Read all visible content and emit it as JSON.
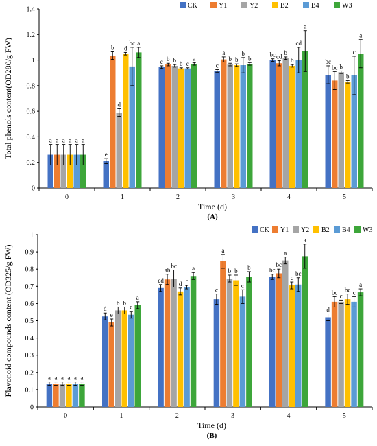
{
  "chart_data": [
    {
      "type": "bar",
      "panel_label": "(A)",
      "ylabel": "Total phenols content(OD280/g FW)",
      "xlabel": "Time (d)",
      "categories": [
        "0",
        "1",
        "2",
        "3",
        "4",
        "5"
      ],
      "ylim": [
        0,
        1.4
      ],
      "yticks": [
        "0",
        "0.2",
        "0.4",
        "0.6",
        "0.8",
        "1",
        "1.2",
        "1.4"
      ],
      "legend_position": "top-right",
      "series": [
        {
          "name": "CK",
          "color": "#4472C4",
          "values": [
            0.26,
            0.21,
            0.945,
            0.915,
            1.0,
            0.885
          ],
          "errors": [
            0.08,
            0.02,
            0.01,
            0.01,
            0.01,
            0.07
          ],
          "letters": [
            "a",
            "e",
            "c",
            "c",
            "bc",
            "bc"
          ]
        },
        {
          "name": "Y1",
          "color": "#ED7D31",
          "values": [
            0.26,
            1.035,
            0.965,
            1.005,
            0.975,
            0.84
          ],
          "errors": [
            0.08,
            0.03,
            0.01,
            0.02,
            0.02,
            0.07
          ],
          "letters": [
            "a",
            "b",
            "b",
            "a",
            "cd",
            "bc"
          ]
        },
        {
          "name": "Y2",
          "color": "#A5A5A5",
          "values": [
            0.26,
            0.59,
            0.955,
            0.965,
            1.015,
            0.905
          ],
          "errors": [
            0.08,
            0.03,
            0.01,
            0.01,
            0.01,
            0.01
          ],
          "letters": [
            "a",
            "d",
            "b",
            "b",
            "b",
            "b"
          ]
        },
        {
          "name": "B2",
          "color": "#FFC000",
          "values": [
            0.26,
            1.05,
            0.935,
            0.96,
            0.955,
            0.83
          ],
          "errors": [
            0.08,
            0.01,
            0.005,
            0.01,
            0.01,
            0.01
          ],
          "letters": [
            "a",
            "d",
            "b",
            "b",
            "b",
            "b"
          ]
        },
        {
          "name": "B4",
          "color": "#5B9BD5",
          "values": [
            0.26,
            0.95,
            0.935,
            0.96,
            1.0,
            0.88
          ],
          "errors": [
            0.08,
            0.15,
            0.005,
            0.06,
            0.1,
            0.15
          ],
          "letters": [
            "a",
            "bc",
            "c",
            "b",
            "cd",
            "c"
          ]
        },
        {
          "name": "W3",
          "color": "#3DA63A",
          "values": [
            0.26,
            1.06,
            0.97,
            0.97,
            1.07,
            1.05
          ],
          "errors": [
            0.08,
            0.04,
            0.01,
            0.01,
            0.16,
            0.11
          ],
          "letters": [
            "a",
            "a",
            "a",
            "b",
            "a",
            "a"
          ]
        }
      ]
    },
    {
      "type": "bar",
      "panel_label": "(B)",
      "ylabel": "Flavonoid compounds content (OD325/g FW)",
      "xlabel": "Time (d)",
      "categories": [
        "0",
        "1",
        "2",
        "3",
        "4",
        "5"
      ],
      "ylim": [
        0,
        1
      ],
      "yticks": [
        "0",
        "0.1",
        "0.2",
        "0.3",
        "0.4",
        "0.5",
        "0.6",
        "0.7",
        "0.8",
        "0.9",
        "1"
      ],
      "legend_position": "top-right",
      "series": [
        {
          "name": "CK",
          "color": "#4472C4",
          "values": [
            0.135,
            0.525,
            0.69,
            0.625,
            0.755,
            0.52
          ],
          "errors": [
            0.01,
            0.02,
            0.02,
            0.03,
            0.015,
            0.02
          ],
          "letters": [
            "a",
            "d",
            "cd",
            "c",
            "bc",
            "d"
          ]
        },
        {
          "name": "Y1",
          "color": "#ED7D31",
          "values": [
            0.135,
            0.49,
            0.74,
            0.845,
            0.775,
            0.61
          ],
          "errors": [
            0.01,
            0.02,
            0.03,
            0.04,
            0.025,
            0.03
          ],
          "letters": [
            "a",
            "e",
            "ab",
            "a",
            "bc",
            "bc"
          ]
        },
        {
          "name": "Y2",
          "color": "#A5A5A5",
          "values": [
            0.135,
            0.56,
            0.745,
            0.745,
            0.85,
            0.61
          ],
          "errors": [
            0.01,
            0.02,
            0.05,
            0.02,
            0.02,
            0.01
          ],
          "letters": [
            "a",
            "b",
            "bc",
            "b",
            "a",
            "c"
          ]
        },
        {
          "name": "B2",
          "color": "#FFC000",
          "values": [
            0.135,
            0.56,
            0.67,
            0.735,
            0.705,
            0.625
          ],
          "errors": [
            0.01,
            0.02,
            0.02,
            0.03,
            0.02,
            0.03
          ],
          "letters": [
            "a",
            "b",
            "d",
            "b",
            "c",
            "bc"
          ]
        },
        {
          "name": "B4",
          "color": "#5B9BD5",
          "values": [
            0.135,
            0.535,
            0.695,
            0.64,
            0.71,
            0.61
          ],
          "errors": [
            0.01,
            0.02,
            0.01,
            0.04,
            0.04,
            0.03
          ],
          "letters": [
            "a",
            "c",
            "c",
            "c",
            "bc",
            "c"
          ]
        },
        {
          "name": "W3",
          "color": "#3DA63A",
          "values": [
            0.135,
            0.59,
            0.76,
            0.755,
            0.875,
            0.665
          ],
          "errors": [
            0.01,
            0.02,
            0.02,
            0.03,
            0.07,
            0.02
          ],
          "letters": [
            "a",
            "a",
            "a",
            "b",
            "a",
            "a"
          ]
        }
      ]
    }
  ]
}
